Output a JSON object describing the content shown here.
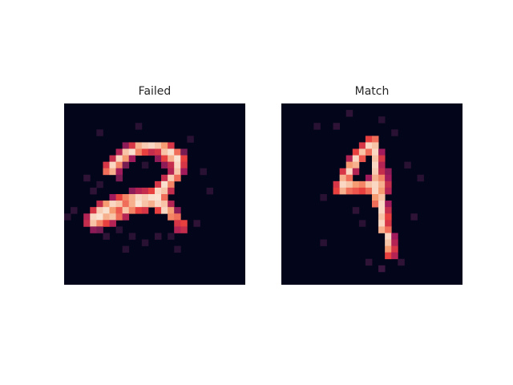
{
  "chart_data": [
    {
      "type": "heatmap",
      "title": "Failed",
      "rows": 28,
      "cols": 28,
      "value_range": [
        0,
        1
      ],
      "colormap": "rocket",
      "colors": {
        "low": "#03051a",
        "mid_low": "#4c1d4b",
        "mid": "#a11a5b",
        "mid_high": "#e83f3f",
        "high_mid": "#f69c73",
        "high": "#faebdd"
      },
      "cells": [
        [
          6,
          9,
          0.35
        ],
        [
          6,
          10,
          0.55
        ],
        [
          6,
          11,
          0.85
        ],
        [
          6,
          12,
          0.92
        ],
        [
          6,
          13,
          0.95
        ],
        [
          6,
          14,
          0.9
        ],
        [
          6,
          15,
          0.8
        ],
        [
          6,
          16,
          0.55
        ],
        [
          7,
          8,
          0.45
        ],
        [
          7,
          9,
          0.9
        ],
        [
          7,
          10,
          0.97
        ],
        [
          7,
          11,
          0.75
        ],
        [
          7,
          12,
          0.6
        ],
        [
          7,
          13,
          0.5
        ],
        [
          7,
          14,
          0.55
        ],
        [
          7,
          15,
          0.9
        ],
        [
          7,
          16,
          0.97
        ],
        [
          7,
          17,
          0.7
        ],
        [
          7,
          18,
          0.3
        ],
        [
          8,
          7,
          0.5
        ],
        [
          8,
          8,
          0.95
        ],
        [
          8,
          9,
          0.8
        ],
        [
          8,
          10,
          0.4
        ],
        [
          8,
          14,
          0.35
        ],
        [
          8,
          15,
          0.6
        ],
        [
          8,
          16,
          0.85
        ],
        [
          8,
          17,
          0.98
        ],
        [
          8,
          18,
          0.6
        ],
        [
          9,
          6,
          0.55
        ],
        [
          9,
          7,
          0.95
        ],
        [
          9,
          8,
          0.75
        ],
        [
          9,
          9,
          0.3
        ],
        [
          9,
          15,
          0.35
        ],
        [
          9,
          16,
          0.5
        ],
        [
          9,
          17,
          0.95
        ],
        [
          9,
          18,
          0.55
        ],
        [
          10,
          6,
          0.7
        ],
        [
          10,
          7,
          0.85
        ],
        [
          10,
          8,
          0.4
        ],
        [
          10,
          16,
          0.45
        ],
        [
          10,
          17,
          0.9
        ],
        [
          10,
          18,
          0.4
        ],
        [
          11,
          8,
          0.3
        ],
        [
          11,
          15,
          0.5
        ],
        [
          11,
          16,
          0.92
        ],
        [
          11,
          17,
          0.7
        ],
        [
          12,
          14,
          0.55
        ],
        [
          12,
          15,
          0.97
        ],
        [
          12,
          16,
          0.75
        ],
        [
          13,
          10,
          0.35
        ],
        [
          13,
          11,
          0.45
        ],
        [
          13,
          12,
          0.5
        ],
        [
          13,
          13,
          0.6
        ],
        [
          13,
          14,
          0.95
        ],
        [
          13,
          15,
          0.9
        ],
        [
          13,
          16,
          0.5
        ],
        [
          14,
          7,
          0.4
        ],
        [
          14,
          8,
          0.6
        ],
        [
          14,
          9,
          0.75
        ],
        [
          14,
          10,
          0.85
        ],
        [
          14,
          11,
          0.95
        ],
        [
          14,
          12,
          0.92
        ],
        [
          14,
          13,
          0.97
        ],
        [
          14,
          14,
          0.98
        ],
        [
          14,
          15,
          0.7
        ],
        [
          15,
          5,
          0.5
        ],
        [
          15,
          6,
          0.8
        ],
        [
          15,
          7,
          0.95
        ],
        [
          15,
          8,
          0.9
        ],
        [
          15,
          9,
          0.7
        ],
        [
          15,
          10,
          0.85
        ],
        [
          15,
          11,
          0.98
        ],
        [
          15,
          12,
          0.9
        ],
        [
          15,
          13,
          0.85
        ],
        [
          15,
          14,
          0.95
        ],
        [
          15,
          15,
          0.9
        ],
        [
          15,
          16,
          0.45
        ],
        [
          16,
          4,
          0.55
        ],
        [
          16,
          5,
          0.92
        ],
        [
          16,
          6,
          0.97
        ],
        [
          16,
          7,
          0.8
        ],
        [
          16,
          8,
          0.65
        ],
        [
          16,
          9,
          0.9
        ],
        [
          16,
          10,
          0.75
        ],
        [
          16,
          11,
          0.6
        ],
        [
          16,
          12,
          0.55
        ],
        [
          16,
          14,
          0.6
        ],
        [
          16,
          15,
          0.95
        ],
        [
          16,
          16,
          0.8
        ],
        [
          16,
          17,
          0.35
        ],
        [
          17,
          3,
          0.45
        ],
        [
          17,
          4,
          0.95
        ],
        [
          17,
          5,
          0.98
        ],
        [
          17,
          6,
          0.85
        ],
        [
          17,
          7,
          0.9
        ],
        [
          17,
          8,
          0.7
        ],
        [
          17,
          9,
          0.45
        ],
        [
          17,
          16,
          0.75
        ],
        [
          17,
          17,
          0.7
        ],
        [
          18,
          3,
          0.5
        ],
        [
          18,
          4,
          0.9
        ],
        [
          18,
          5,
          0.75
        ],
        [
          18,
          6,
          0.6
        ],
        [
          18,
          7,
          0.45
        ],
        [
          18,
          17,
          0.55
        ],
        [
          18,
          18,
          0.6
        ],
        [
          19,
          4,
          0.35
        ],
        [
          19,
          5,
          0.3
        ],
        [
          19,
          17,
          0.45
        ],
        [
          19,
          18,
          0.5
        ],
        [
          4,
          5,
          0.1
        ],
        [
          3,
          11,
          0.1
        ],
        [
          5,
          19,
          0.1
        ],
        [
          11,
          3,
          0.12
        ],
        [
          12,
          5,
          0.1
        ],
        [
          13,
          4,
          0.12
        ],
        [
          13,
          22,
          0.1
        ],
        [
          19,
          8,
          0.1
        ],
        [
          20,
          6,
          0.12
        ],
        [
          20,
          10,
          0.1
        ],
        [
          20,
          14,
          0.12
        ],
        [
          20,
          16,
          0.1
        ],
        [
          21,
          12,
          0.1
        ],
        [
          22,
          9,
          0.1
        ],
        [
          22,
          17,
          0.1
        ],
        [
          18,
          20,
          0.12
        ],
        [
          16,
          1,
          0.12
        ],
        [
          17,
          0,
          0.1
        ],
        [
          10,
          21,
          0.1
        ],
        [
          9,
          12,
          0.1
        ]
      ]
    },
    {
      "type": "heatmap",
      "title": "Match",
      "rows": 28,
      "cols": 28,
      "value_range": [
        0,
        1
      ],
      "colormap": "rocket",
      "colors": {
        "low": "#03051a",
        "mid_low": "#4c1d4b",
        "mid": "#a11a5b",
        "mid_high": "#e83f3f",
        "high_mid": "#f69c73",
        "high": "#faebdd"
      },
      "cells": [
        [
          5,
          13,
          0.6
        ],
        [
          5,
          14,
          0.7
        ],
        [
          6,
          12,
          0.55
        ],
        [
          6,
          13,
          0.95
        ],
        [
          6,
          14,
          0.9
        ],
        [
          7,
          11,
          0.6
        ],
        [
          7,
          12,
          0.9
        ],
        [
          7,
          13,
          0.7
        ],
        [
          7,
          14,
          0.95
        ],
        [
          7,
          15,
          0.4
        ],
        [
          8,
          10,
          0.45
        ],
        [
          8,
          11,
          0.95
        ],
        [
          8,
          12,
          0.65
        ],
        [
          8,
          14,
          0.9
        ],
        [
          8,
          15,
          0.55
        ],
        [
          9,
          10,
          0.8
        ],
        [
          9,
          11,
          0.85
        ],
        [
          9,
          14,
          0.95
        ],
        [
          9,
          15,
          0.45
        ],
        [
          10,
          9,
          0.55
        ],
        [
          10,
          10,
          0.95
        ],
        [
          10,
          11,
          0.45
        ],
        [
          10,
          14,
          0.92
        ],
        [
          10,
          15,
          0.5
        ],
        [
          10,
          16,
          0.35
        ],
        [
          11,
          9,
          0.85
        ],
        [
          11,
          10,
          0.7
        ],
        [
          11,
          13,
          0.4
        ],
        [
          11,
          14,
          0.85
        ],
        [
          11,
          15,
          0.75
        ],
        [
          11,
          16,
          0.4
        ],
        [
          12,
          8,
          0.55
        ],
        [
          12,
          9,
          0.95
        ],
        [
          12,
          10,
          0.9
        ],
        [
          12,
          11,
          0.8
        ],
        [
          12,
          12,
          0.75
        ],
        [
          12,
          13,
          0.9
        ],
        [
          12,
          14,
          0.95
        ],
        [
          12,
          15,
          0.85
        ],
        [
          12,
          16,
          0.5
        ],
        [
          13,
          8,
          0.6
        ],
        [
          13,
          9,
          0.85
        ],
        [
          13,
          10,
          0.7
        ],
        [
          13,
          11,
          0.65
        ],
        [
          13,
          12,
          0.6
        ],
        [
          13,
          13,
          0.7
        ],
        [
          13,
          14,
          0.95
        ],
        [
          13,
          15,
          0.8
        ],
        [
          13,
          16,
          0.45
        ],
        [
          14,
          14,
          0.8
        ],
        [
          14,
          15,
          0.9
        ],
        [
          15,
          14,
          0.7
        ],
        [
          15,
          15,
          0.95
        ],
        [
          15,
          16,
          0.4
        ],
        [
          16,
          15,
          0.95
        ],
        [
          16,
          16,
          0.5
        ],
        [
          17,
          15,
          0.9
        ],
        [
          17,
          16,
          0.6
        ],
        [
          18,
          15,
          0.95
        ],
        [
          18,
          16,
          0.55
        ],
        [
          19,
          15,
          0.85
        ],
        [
          19,
          16,
          0.7
        ],
        [
          20,
          16,
          0.95
        ],
        [
          20,
          17,
          0.4
        ],
        [
          21,
          16,
          0.9
        ],
        [
          21,
          17,
          0.45
        ],
        [
          22,
          16,
          0.8
        ],
        [
          22,
          17,
          0.55
        ],
        [
          23,
          16,
          0.6
        ],
        [
          23,
          17,
          0.45
        ],
        [
          1,
          10,
          0.12
        ],
        [
          2,
          15,
          0.1
        ],
        [
          3,
          8,
          0.12
        ],
        [
          3,
          5,
          0.1
        ],
        [
          4,
          17,
          0.1
        ],
        [
          14,
          6,
          0.1
        ],
        [
          16,
          11,
          0.12
        ],
        [
          18,
          12,
          0.1
        ],
        [
          17,
          20,
          0.12
        ],
        [
          21,
          6,
          0.1
        ],
        [
          24,
          13,
          0.12
        ],
        [
          25,
          15,
          0.15
        ],
        [
          24,
          18,
          0.12
        ],
        [
          11,
          21,
          0.1
        ],
        [
          9,
          19,
          0.1
        ]
      ]
    }
  ]
}
